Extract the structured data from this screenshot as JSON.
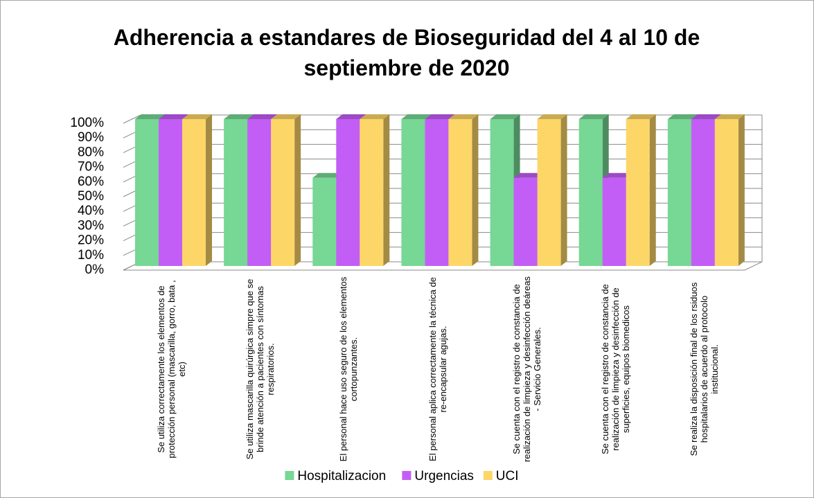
{
  "chart_data": {
    "type": "bar3d",
    "title": "Adherencia a estandares de Bioseguridad del 4 al 10 de septiembre de 2020",
    "categories": [
      "Se utiliza correctamente los elementos de protección personal (mascarilla, gorro, bata , etc)",
      "Se utiliza mascarilla quirúrgica simpre que se brinde atención a pacientes con síntomas respiratorios.",
      "El personal hace uso seguro de los elementos cortopunzantes.",
      "El personal aplica correctamente la técnica de re-encapsular agujas.",
      "Se cuenta con el registro de constancia de realización de limpieza y desinfección deáreas - Servicio Generales.",
      "Se cuenta con el registro de constancia de realización de limpieza y desinfección de superficies, equipos biomedicos",
      "Se realiza la disposición final de los rsiduos hospitalarios de acuerdo al protocolo institucional."
    ],
    "series": [
      {
        "name": "Hospitalizacion",
        "color": "#77d794",
        "values": [
          100,
          100,
          60,
          100,
          100,
          100,
          100
        ]
      },
      {
        "name": "Urgencias",
        "color": "#c25ef5",
        "values": [
          100,
          100,
          100,
          100,
          60,
          60,
          100
        ]
      },
      {
        "name": "UCI",
        "color": "#fdd668",
        "values": [
          100,
          100,
          100,
          100,
          100,
          100,
          100
        ]
      }
    ],
    "ylim": [
      0,
      100
    ],
    "yticks": [
      {
        "value": 0,
        "label": "0%"
      },
      {
        "value": 10,
        "label": "10%"
      },
      {
        "value": 20,
        "label": "20%"
      },
      {
        "value": 30,
        "label": "30%"
      },
      {
        "value": 40,
        "label": "40%"
      },
      {
        "value": 50,
        "label": "50%"
      },
      {
        "value": 60,
        "label": "60%"
      },
      {
        "value": 70,
        "label": "70%"
      },
      {
        "value": 80,
        "label": "80%"
      },
      {
        "value": 90,
        "label": "90%"
      },
      {
        "value": 100,
        "label": "100%"
      }
    ],
    "grid": true,
    "legend": "bottom"
  }
}
